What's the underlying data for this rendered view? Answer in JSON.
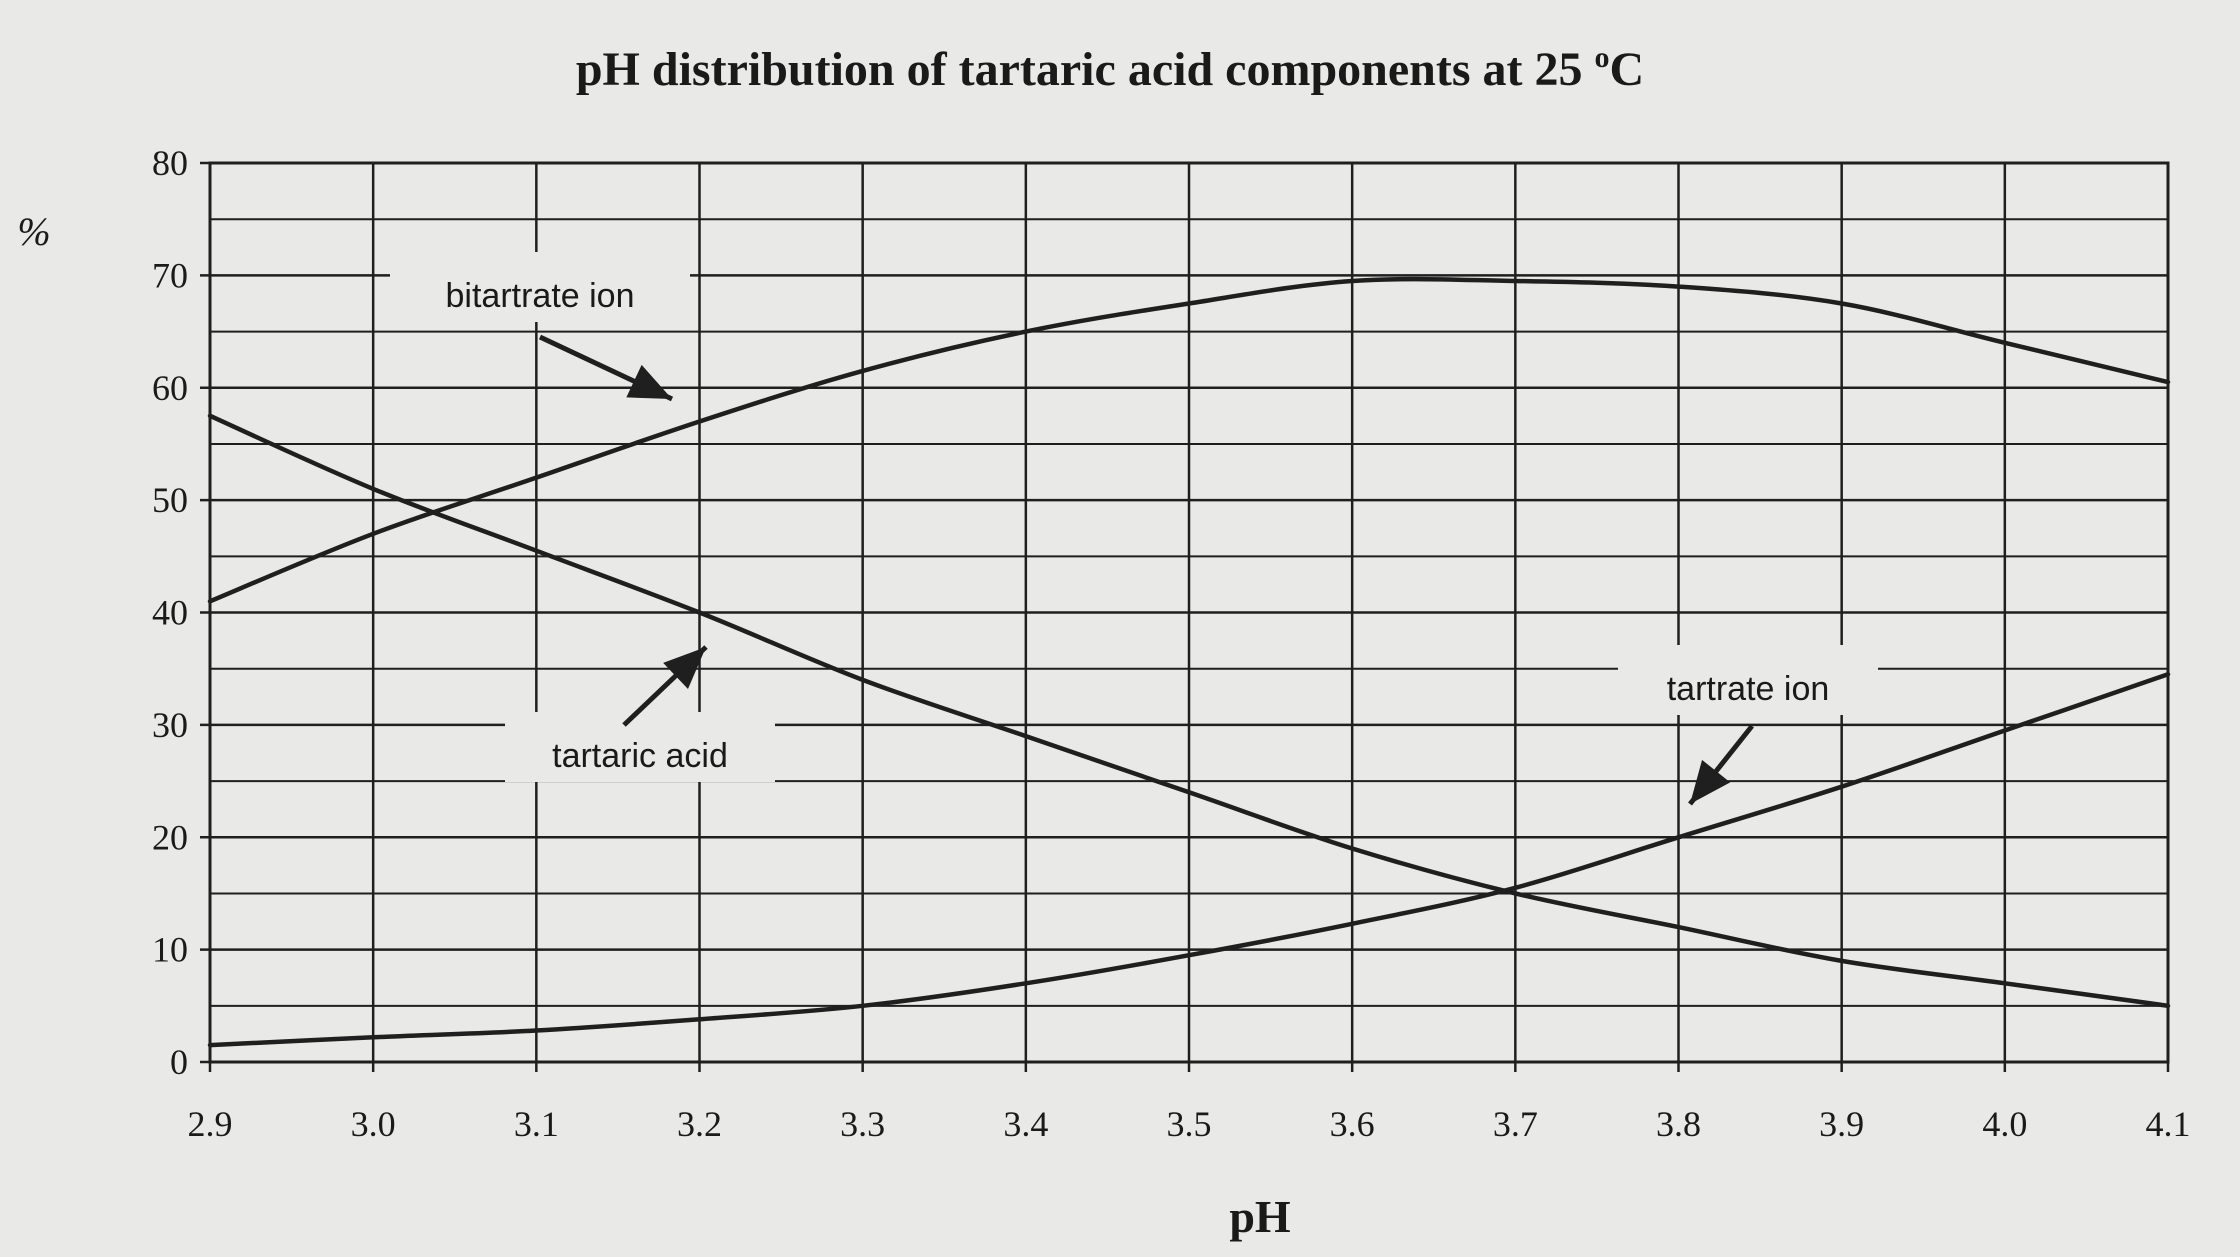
{
  "chart_data": {
    "type": "line",
    "title": "pH distribution of tartaric acid components at 25 °C",
    "title_main": "pH distribution of tartaric acid components at 25 ",
    "title_degree": "o",
    "title_unit": "C",
    "xlabel": "pH",
    "ylabel": "%",
    "xlim": [
      2.9,
      4.1
    ],
    "ylim": [
      0,
      80
    ],
    "xticks": [
      "2.9",
      "3.0",
      "3.1",
      "3.2",
      "3.3",
      "3.4",
      "3.5",
      "3.6",
      "3.7",
      "3.8",
      "3.9",
      "4.0",
      "4.1"
    ],
    "yticks": [
      "0",
      "10",
      "20",
      "30",
      "40",
      "50",
      "60",
      "70",
      "80"
    ],
    "grid": true,
    "line_color": "#1f1f1f",
    "series": [
      {
        "name": "tartaric acid",
        "x": [
          2.9,
          3.0,
          3.1,
          3.2,
          3.3,
          3.4,
          3.5,
          3.6,
          3.7,
          3.8,
          3.9,
          4.0,
          4.1
        ],
        "y": [
          57.5,
          51,
          45.5,
          40,
          34,
          29,
          24,
          19,
          15,
          12,
          9,
          7,
          5
        ]
      },
      {
        "name": "bitartrate ion",
        "x": [
          2.9,
          3.0,
          3.1,
          3.2,
          3.3,
          3.4,
          3.5,
          3.6,
          3.7,
          3.8,
          3.9,
          4.0,
          4.1
        ],
        "y": [
          41,
          47,
          52,
          57,
          61.5,
          65,
          67.5,
          69.5,
          69.5,
          69,
          67.5,
          64,
          60.5
        ]
      },
      {
        "name": "tartrate ion",
        "x": [
          2.9,
          3.0,
          3.1,
          3.2,
          3.3,
          3.4,
          3.5,
          3.6,
          3.7,
          3.8,
          3.9,
          4.0,
          4.1
        ],
        "y": [
          1.5,
          2.2,
          2.8,
          3.8,
          5,
          7,
          9.5,
          12.3,
          15.5,
          20,
          24.5,
          29.5,
          34.5
        ]
      }
    ],
    "annotations": [
      {
        "text": "bitartrate ion",
        "points_to": "bitartrate ion",
        "near_x": 3.2,
        "near_y": 58
      },
      {
        "text": "tartaric acid",
        "points_to": "tartaric acid",
        "near_x": 3.21,
        "near_y": 37
      },
      {
        "text": "tartrate ion",
        "points_to": "tartrate ion",
        "near_x": 3.82,
        "near_y": 23
      }
    ]
  }
}
